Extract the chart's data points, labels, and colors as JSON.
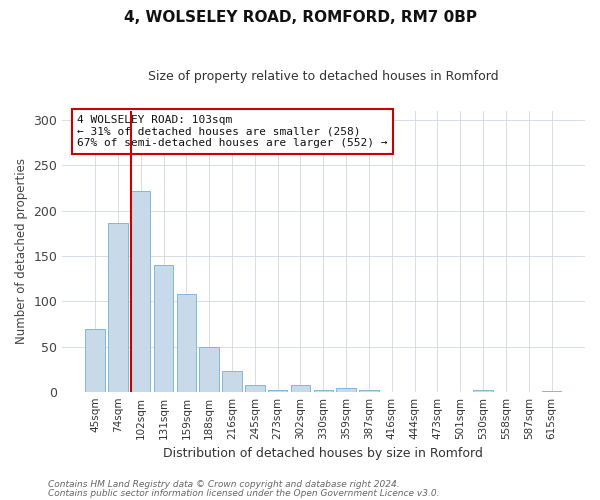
{
  "title": "4, WOLSELEY ROAD, ROMFORD, RM7 0BP",
  "subtitle": "Size of property relative to detached houses in Romford",
  "xlabel": "Distribution of detached houses by size in Romford",
  "ylabel": "Number of detached properties",
  "bar_labels": [
    "45sqm",
    "74sqm",
    "102sqm",
    "131sqm",
    "159sqm",
    "188sqm",
    "216sqm",
    "245sqm",
    "273sqm",
    "302sqm",
    "330sqm",
    "359sqm",
    "387sqm",
    "416sqm",
    "444sqm",
    "473sqm",
    "501sqm",
    "530sqm",
    "558sqm",
    "587sqm",
    "615sqm"
  ],
  "bar_heights": [
    70,
    186,
    222,
    140,
    108,
    50,
    24,
    8,
    3,
    8,
    3,
    5,
    3,
    0,
    0,
    0,
    0,
    3,
    0,
    0,
    2
  ],
  "bar_color": "#c8daea",
  "bar_edge_color": "#7fb9d9",
  "ylim": [
    0,
    310
  ],
  "yticks": [
    0,
    50,
    100,
    150,
    200,
    250,
    300
  ],
  "vline_color": "#cc0000",
  "annotation_title": "4 WOLSELEY ROAD: 103sqm",
  "annotation_line1": "← 31% of detached houses are smaller (258)",
  "annotation_line2": "67% of semi-detached houses are larger (552) →",
  "annotation_box_edgecolor": "#cc0000",
  "footer1": "Contains HM Land Registry data © Crown copyright and database right 2024.",
  "footer2": "Contains public sector information licensed under the Open Government Licence v3.0.",
  "bg_color": "#ffffff",
  "plot_bg_color": "#ffffff",
  "grid_color": "#d0d8e0"
}
